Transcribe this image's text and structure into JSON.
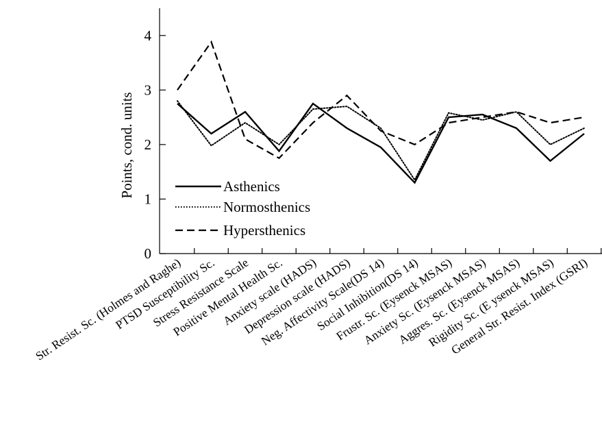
{
  "chart_data": {
    "type": "line",
    "ylabel": "Points, cond. units",
    "xlabel": "",
    "ylim": [
      0,
      4.5
    ],
    "yticks": [
      0,
      1,
      2,
      3,
      4
    ],
    "grid": false,
    "legend_position": "lower-left",
    "categories": [
      "Str. Resist. Sc. (Holmes and Raghe)",
      "PTSD Susceptibility Sc.",
      "Stress Resistance Scale",
      "Positive Mental Health Sc.",
      "Anxiety scale (HADS)",
      "Depression scale (HADS)",
      "Neg. Affectivity Scale(DS 14)",
      "Social Inhibition(DS 14)",
      "Frustr. Sc. (Eysenck MSAS)",
      "Anxiety Sc. (Eysenck MSAS)",
      "Aggres. Sc. (Eysenck MSAS)",
      "Rigidity Sc. (E ysenck MSAS)",
      "General Str. Resist. Index (GSRI)"
    ],
    "series": [
      {
        "name": "Asthenics",
        "style": "solid",
        "values": [
          2.75,
          2.2,
          2.6,
          1.88,
          2.75,
          2.3,
          1.95,
          1.3,
          2.5,
          2.55,
          2.3,
          1.7,
          2.2
        ]
      },
      {
        "name": "Normosthenics",
        "style": "dotted",
        "values": [
          2.8,
          1.98,
          2.4,
          2.0,
          2.65,
          2.7,
          2.3,
          1.35,
          2.58,
          2.45,
          2.6,
          2.0,
          2.3
        ]
      },
      {
        "name": "Hypersthenics",
        "style": "dashed",
        "values": [
          3.0,
          3.88,
          2.1,
          1.75,
          2.4,
          2.9,
          2.25,
          2.0,
          2.4,
          2.5,
          2.6,
          2.4,
          2.5
        ]
      }
    ]
  }
}
